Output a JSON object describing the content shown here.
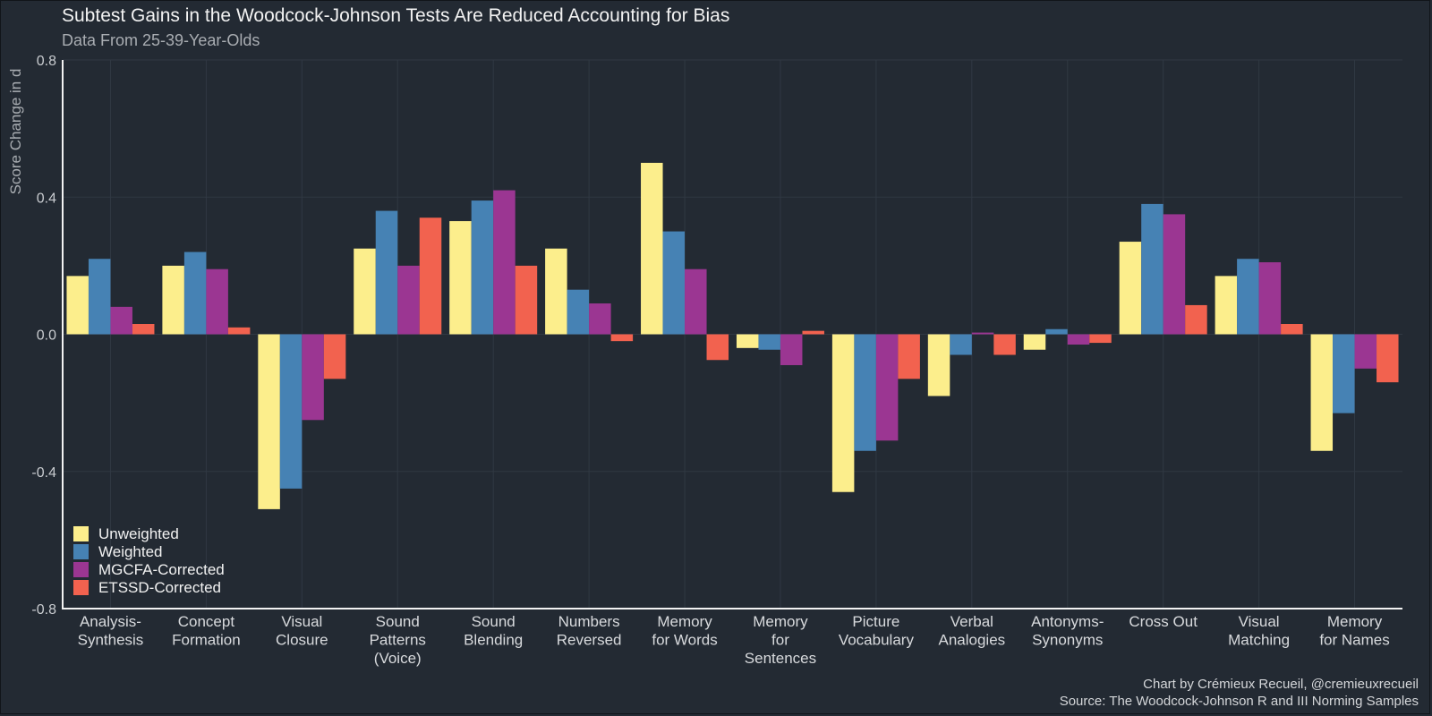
{
  "chart_data": {
    "type": "bar",
    "title": "Subtest Gains in the Woodcock-Johnson Tests Are Reduced Accounting for Bias",
    "subtitle": "Data From 25-39-Year-Olds",
    "xlabel": "",
    "ylabel": "Score Change in d",
    "ylim": [
      -0.8,
      0.8
    ],
    "yticks": [
      {
        "value": -0.8,
        "label": "-0.8"
      },
      {
        "value": -0.4,
        "label": "-0.4"
      },
      {
        "value": 0.0,
        "label": "0.0"
      },
      {
        "value": 0.4,
        "label": "0.4"
      },
      {
        "value": 0.8,
        "label": "0.8"
      }
    ],
    "grid": true,
    "legend_position": "bottom-left",
    "categories": [
      [
        "Analysis-",
        "Synthesis"
      ],
      [
        "Concept",
        "Formation"
      ],
      [
        "Visual",
        "Closure"
      ],
      [
        "Sound",
        "Patterns",
        "(Voice)"
      ],
      [
        "Sound",
        "Blending"
      ],
      [
        "Numbers",
        "Reversed"
      ],
      [
        "Memory",
        "for Words"
      ],
      [
        "Memory",
        "for",
        "Sentences"
      ],
      [
        "Picture",
        "Vocabulary"
      ],
      [
        "Verbal",
        "Analogies"
      ],
      [
        "Antonyms-",
        "Synonyms"
      ],
      [
        "Cross Out"
      ],
      [
        "Visual",
        "Matching"
      ],
      [
        "Memory",
        "for Names"
      ]
    ],
    "series": [
      {
        "name": "Unweighted",
        "color": "#fcee8c",
        "values": [
          0.17,
          0.2,
          -0.51,
          0.25,
          0.33,
          0.25,
          0.5,
          -0.04,
          -0.46,
          -0.18,
          -0.045,
          0.27,
          0.17,
          -0.34
        ]
      },
      {
        "name": "Weighted",
        "color": "#4682b4",
        "values": [
          0.22,
          0.24,
          -0.45,
          0.36,
          0.39,
          0.13,
          0.3,
          -0.045,
          -0.34,
          -0.06,
          0.015,
          0.38,
          0.22,
          -0.23
        ]
      },
      {
        "name": "MGCFA-Corrected",
        "color": "#9b3692",
        "values": [
          0.08,
          0.19,
          -0.25,
          0.2,
          0.42,
          0.09,
          0.19,
          -0.09,
          -0.31,
          0.005,
          -0.03,
          0.35,
          0.21,
          -0.1
        ]
      },
      {
        "name": "ETSSD-Corrected",
        "color": "#f2624f",
        "values": [
          0.03,
          0.02,
          -0.13,
          0.34,
          0.2,
          -0.02,
          -0.075,
          0.01,
          -0.13,
          -0.06,
          -0.025,
          0.085,
          0.03,
          -0.14
        ]
      }
    ]
  },
  "credit": {
    "line1": "Chart by Crémieux Recueil, @cremieuxrecueil",
    "line2": "Source: The Woodcock-Johnson R and III Norming Samples"
  }
}
